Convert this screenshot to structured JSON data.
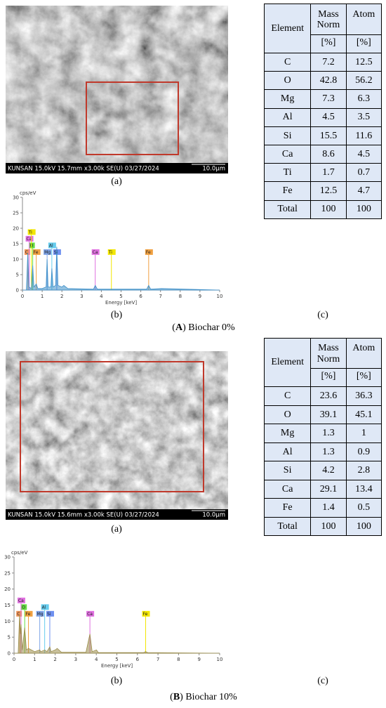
{
  "panels": [
    {
      "sem": {
        "info": "KUNSAN 15.0kV 15.7mm x3.00k SE(U) 03/27/2024",
        "scale": "10.0μm",
        "label": "(a)"
      },
      "spectrum": {
        "type": "area",
        "y_label": "cps/eV",
        "x_label": "Energy [keV]",
        "xlim": [
          0,
          10
        ],
        "ylim": [
          0,
          30
        ],
        "xticks": [
          0,
          1,
          2,
          3,
          4,
          5,
          6,
          7,
          8,
          9,
          10
        ],
        "yticks": [
          0,
          5,
          10,
          15,
          20,
          25,
          30
        ],
        "color": "#3d8fc9",
        "x": [
          0,
          0.2,
          0.27,
          0.33,
          0.45,
          0.52,
          0.58,
          0.7,
          0.78,
          1.0,
          1.2,
          1.25,
          1.3,
          1.44,
          1.49,
          1.55,
          1.68,
          1.74,
          1.8,
          2.0,
          2.1,
          2.3,
          3.6,
          3.69,
          3.8,
          6.3,
          6.4,
          6.5,
          7.05,
          10
        ],
        "values": [
          0,
          0,
          12,
          1,
          0.5,
          8,
          1,
          2,
          0.5,
          0.5,
          1,
          10,
          1,
          1,
          7,
          1,
          1.5,
          14,
          1.5,
          1,
          1.5,
          0.5,
          0.3,
          1.5,
          0.3,
          0.3,
          1.5,
          0.3,
          0.5,
          0
        ],
        "tags": [
          {
            "text": "C",
            "energy": 0.28,
            "color": "#f0955a"
          },
          {
            "text": "Fe",
            "energy": 0.7,
            "color": "#f0a040"
          },
          {
            "text": "Mg",
            "energy": 1.25,
            "color": "#7fa4e8"
          },
          {
            "text": "Si",
            "energy": 1.74,
            "color": "#6f90f0"
          },
          {
            "text": "Ca",
            "energy": 3.69,
            "color": "#e070e0"
          },
          {
            "text": "Ti",
            "energy": 4.51,
            "color": "#f2e600"
          },
          {
            "text": "Fe",
            "energy": 6.4,
            "color": "#f0a040"
          },
          {
            "text": "O",
            "energy": 0.52,
            "color": "#66dd44"
          },
          {
            "text": "Al",
            "energy": 1.49,
            "color": "#66ccee"
          },
          {
            "text": "Ca",
            "energy": 0.34,
            "color": "#e070e0"
          },
          {
            "text": "Ti",
            "energy": 0.45,
            "color": "#f2e600"
          }
        ],
        "label": "(b)"
      },
      "table": {
        "columns": [
          "Element",
          "Mass Norm",
          "Atom"
        ],
        "units": [
          "[%]",
          "[%]"
        ],
        "rows": [
          [
            "C",
            "7.2",
            "12.5"
          ],
          [
            "O",
            "42.8",
            "56.2"
          ],
          [
            "Mg",
            "7.3",
            "6.3"
          ],
          [
            "Al",
            "4.5",
            "3.5"
          ],
          [
            "Si",
            "15.5",
            "11.6"
          ],
          [
            "Ca",
            "8.6",
            "4.5"
          ],
          [
            "Ti",
            "1.7",
            "0.7"
          ],
          [
            "Fe",
            "12.5",
            "4.7"
          ],
          [
            "Total",
            "100",
            "100"
          ]
        ],
        "label": "(c)"
      },
      "caption": {
        "open": "(",
        "letter": "A",
        "rest": ") Biochar 0%"
      }
    },
    {
      "sem": {
        "info": "KUNSAN 15.0kV 15.6mm x3.00k SE(U) 03/27/2024",
        "scale": "10.0μm",
        "label": "(a)"
      },
      "spectrum": {
        "type": "area",
        "y_label": "cps/eV",
        "x_label": "Energy [keV]",
        "xlim": [
          0,
          10
        ],
        "ylim": [
          0,
          30
        ],
        "xticks": [
          0,
          1,
          2,
          3,
          4,
          5,
          6,
          7,
          8,
          9,
          10
        ],
        "yticks": [
          0,
          5,
          10,
          15,
          20,
          25,
          30
        ],
        "color": "#9a8c4a",
        "x": [
          0,
          0.2,
          0.27,
          0.31,
          0.34,
          0.4,
          0.52,
          0.6,
          0.7,
          1.0,
          1.25,
          1.3,
          1.49,
          1.6,
          1.74,
          1.8,
          2.0,
          2.1,
          2.3,
          3.5,
          3.69,
          3.8,
          4.01,
          4.1,
          6.3,
          6.4,
          6.5,
          10
        ],
        "values": [
          0,
          0,
          12,
          6,
          9,
          1,
          8,
          1,
          1.5,
          0.5,
          1,
          0.5,
          1,
          0.5,
          2,
          0.5,
          1,
          1.5,
          0.3,
          0.3,
          6,
          0.5,
          1,
          0.2,
          0.2,
          0.5,
          0.2,
          0
        ],
        "tags": [
          {
            "text": "C",
            "energy": 0.28,
            "color": "#f0955a"
          },
          {
            "text": "Fe",
            "energy": 0.7,
            "color": "#f0a040"
          },
          {
            "text": "Mg",
            "energy": 1.25,
            "color": "#7fa4e8"
          },
          {
            "text": "Si",
            "energy": 1.74,
            "color": "#6f90f0"
          },
          {
            "text": "Ca",
            "energy": 3.69,
            "color": "#e070e0"
          },
          {
            "text": "Fe",
            "energy": 6.4,
            "color": "#f2e600"
          },
          {
            "text": "O",
            "energy": 0.52,
            "color": "#66dd44"
          },
          {
            "text": "Al",
            "energy": 1.49,
            "color": "#66ccee"
          },
          {
            "text": "Ca",
            "energy": 0.34,
            "color": "#e070e0"
          }
        ],
        "label": "(b)"
      },
      "table": {
        "columns": [
          "Element",
          "Mass Norm",
          "Atom"
        ],
        "units": [
          "[%]",
          "[%]"
        ],
        "rows": [
          [
            "C",
            "23.6",
            "36.3"
          ],
          [
            "O",
            "39.1",
            "45.1"
          ],
          [
            "Mg",
            "1.3",
            "1"
          ],
          [
            "Al",
            "1.3",
            "0.9"
          ],
          [
            "Si",
            "4.2",
            "2.8"
          ],
          [
            "Ca",
            "29.1",
            "13.4"
          ],
          [
            "Fe",
            "1.4",
            "0.5"
          ],
          [
            "Total",
            "100",
            "100"
          ]
        ],
        "label": "(c)"
      },
      "caption": {
        "open": "(",
        "letter": "B",
        "rest": ") Biochar 10%"
      }
    }
  ]
}
